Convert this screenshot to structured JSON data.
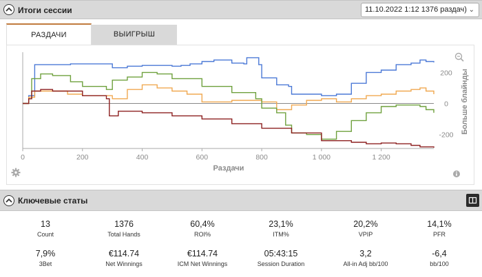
{
  "session_panel": {
    "title": "Итоги сессии",
    "session_select": "11.10.2022 1:12 1376 раздач)"
  },
  "tabs": [
    {
      "label": "РАЗДАЧИ",
      "active": true
    },
    {
      "label": "ВЫИГРЫШ",
      "active": false
    }
  ],
  "chart_data": {
    "type": "line",
    "xlabel": "Раздачи",
    "ylabel": "Больше блайнды",
    "x_ticks": [
      "0",
      "200",
      "400",
      "600",
      "800",
      "1 000",
      "1 200"
    ],
    "y_ticks": [
      "200",
      "0",
      "-200"
    ],
    "xlim": [
      0,
      1376
    ],
    "ylim": [
      -290,
      330
    ],
    "grid": false,
    "colors": {
      "blue": "#4a78d6",
      "orange": "#f0a850",
      "green": "#6ea03c",
      "red": "#8c1e1e"
    },
    "series": [
      {
        "color": "#4a78d6",
        "x": [
          0,
          20,
          40,
          100,
          160,
          200,
          300,
          350,
          400,
          450,
          500,
          530,
          560,
          600,
          640,
          700,
          740,
          750,
          790,
          800,
          850,
          890,
          900,
          950,
          1000,
          1050,
          1100,
          1150,
          1200,
          1250,
          1300,
          1330,
          1350,
          1376
        ],
        "y": [
          0,
          50,
          250,
          250,
          255,
          255,
          230,
          240,
          245,
          245,
          240,
          245,
          255,
          270,
          280,
          260,
          255,
          295,
          250,
          165,
          120,
          110,
          60,
          60,
          50,
          60,
          130,
          200,
          215,
          250,
          260,
          280,
          270,
          265
        ]
      },
      {
        "color": "#f0a850",
        "x": [
          0,
          20,
          40,
          100,
          150,
          200,
          300,
          350,
          400,
          450,
          500,
          550,
          600,
          700,
          800,
          850,
          900,
          950,
          1000,
          1050,
          1100,
          1150,
          1200,
          1250,
          1300,
          1330,
          1350,
          1376
        ],
        "y": [
          0,
          40,
          80,
          80,
          60,
          50,
          30,
          90,
          120,
          100,
          80,
          60,
          10,
          20,
          10,
          -40,
          -10,
          20,
          30,
          10,
          30,
          50,
          60,
          80,
          90,
          100,
          80,
          60
        ]
      },
      {
        "color": "#6ea03c",
        "x": [
          0,
          20,
          30,
          60,
          100,
          160,
          200,
          280,
          300,
          350,
          400,
          450,
          500,
          600,
          700,
          780,
          800,
          850,
          880,
          900,
          950,
          1000,
          1050,
          1100,
          1150,
          1200,
          1250,
          1300,
          1330,
          1350,
          1376
        ],
        "y": [
          0,
          30,
          160,
          190,
          180,
          140,
          110,
          90,
          150,
          170,
          200,
          190,
          160,
          110,
          70,
          30,
          -30,
          -60,
          -140,
          -190,
          -200,
          -230,
          -180,
          -110,
          -60,
          -20,
          -10,
          -10,
          -20,
          -40,
          -60
        ]
      },
      {
        "color": "#8c1e1e",
        "x": [
          0,
          20,
          30,
          60,
          100,
          200,
          280,
          290,
          320,
          400,
          500,
          600,
          700,
          800,
          900,
          1000,
          1100,
          1150,
          1200,
          1250,
          1300,
          1330,
          1350,
          1376
        ],
        "y": [
          0,
          30,
          80,
          90,
          80,
          50,
          30,
          -80,
          -50,
          -60,
          -80,
          -100,
          -130,
          -160,
          -190,
          -240,
          -250,
          -260,
          -255,
          -260,
          -270,
          -280,
          -280,
          -285
        ]
      }
    ]
  },
  "key_stats_panel": {
    "title": "Ключевые статы",
    "row1": [
      {
        "value": "13",
        "label": "Count"
      },
      {
        "value": "1376",
        "label": "Total Hands"
      },
      {
        "value": "60,4%",
        "label": "ROI%"
      },
      {
        "value": "23,1%",
        "label": "ITM%"
      },
      {
        "value": "20,2%",
        "label": "VPIP"
      },
      {
        "value": "14,1%",
        "label": "PFR"
      }
    ],
    "row2": [
      {
        "value": "7,9%",
        "label": "3Bet"
      },
      {
        "value": "€114.74",
        "label": "Net Winnings"
      },
      {
        "value": "€114.74",
        "label": "ICM Net Winnings"
      },
      {
        "value": "05:43:15",
        "label": "Session Duration"
      },
      {
        "value": "3,2",
        "label": "All-in Adj bb/100"
      },
      {
        "value": "-6,4",
        "label": "bb/100"
      }
    ]
  }
}
